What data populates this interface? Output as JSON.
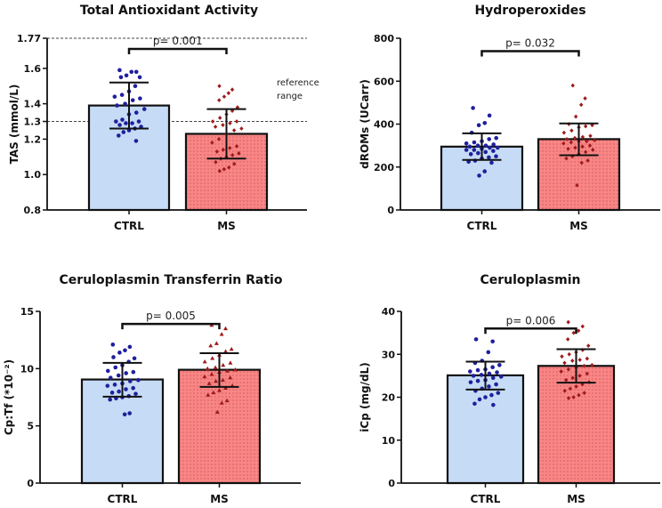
{
  "chart_data": [
    {
      "type": "bar",
      "title": "Total Antioxidant Activity",
      "ylabel": "TAS (mmol/L)",
      "categories": [
        "CTRL",
        "MS"
      ],
      "ylim": [
        0.8,
        1.77
      ],
      "yticks": [
        0.8,
        1.0,
        1.2,
        1.3,
        1.4,
        1.6,
        1.77
      ],
      "reference_lines": [
        1.3,
        1.77
      ],
      "annotation": "reference\nrange",
      "annotation_lines": [
        "reference",
        "range"
      ],
      "pvalue": "p= 0.001",
      "bracket_y": 1.71,
      "series": [
        {
          "category": "CTRL",
          "mean": 1.39,
          "sd_low": 1.26,
          "sd_high": 1.52,
          "marker": "circle",
          "points": [
            1.59,
            1.58,
            1.58,
            1.56,
            1.55,
            1.55,
            1.5,
            1.47,
            1.45,
            1.44,
            1.43,
            1.42,
            1.4,
            1.39,
            1.37,
            1.35,
            1.34,
            1.31,
            1.3,
            1.3,
            1.29,
            1.29,
            1.28,
            1.27,
            1.26,
            1.25,
            1.24,
            1.22,
            1.19
          ]
        },
        {
          "category": "MS",
          "mean": 1.23,
          "sd_low": 1.09,
          "sd_high": 1.37,
          "marker": "diamond",
          "points": [
            1.5,
            1.48,
            1.46,
            1.44,
            1.42,
            1.38,
            1.36,
            1.34,
            1.32,
            1.3,
            1.3,
            1.29,
            1.28,
            1.27,
            1.26,
            1.25,
            1.23,
            1.2,
            1.18,
            1.16,
            1.15,
            1.14,
            1.13,
            1.12,
            1.11,
            1.1,
            1.09,
            1.07,
            1.06,
            1.04,
            1.03,
            1.02
          ]
        }
      ]
    },
    {
      "type": "bar",
      "title": "Hydroperoxides",
      "ylabel": "dROMs (UCarr)",
      "categories": [
        "CTRL",
        "MS"
      ],
      "ylim": [
        0,
        800
      ],
      "yticks": [
        0,
        200,
        400,
        600,
        800
      ],
      "pvalue": "p= 0.032",
      "bracket_y": 740,
      "series": [
        {
          "category": "CTRL",
          "mean": 295,
          "sd_low": 233,
          "sd_high": 357,
          "marker": "circle",
          "points": [
            475,
            440,
            405,
            395,
            360,
            335,
            330,
            320,
            315,
            310,
            305,
            300,
            300,
            295,
            290,
            290,
            285,
            280,
            280,
            275,
            270,
            265,
            260,
            250,
            245,
            240,
            230,
            225,
            220,
            180,
            160
          ]
        },
        {
          "category": "MS",
          "mean": 330,
          "sd_low": 255,
          "sd_high": 403,
          "marker": "diamond",
          "points": [
            580,
            520,
            490,
            435,
            400,
            395,
            390,
            385,
            370,
            360,
            345,
            340,
            335,
            330,
            325,
            320,
            320,
            315,
            310,
            300,
            295,
            290,
            285,
            280,
            270,
            260,
            250,
            240,
            230,
            220,
            115
          ]
        }
      ]
    },
    {
      "type": "bar",
      "title": "Ceruloplasmin Transferrin Ratio",
      "ylabel": "Cp:Tf (*10⁻²)",
      "categories": [
        "CTRL",
        "MS"
      ],
      "ylim": [
        0,
        15
      ],
      "yticks": [
        0,
        5,
        10,
        15
      ],
      "pvalue": "p= 0.005",
      "bracket_y": 13.9,
      "series": [
        {
          "category": "CTRL",
          "mean": 9.05,
          "sd_low": 7.55,
          "sd_high": 10.5,
          "marker": "circle",
          "points": [
            12.1,
            11.9,
            11.6,
            11.4,
            11.0,
            10.9,
            10.6,
            10.3,
            10.1,
            9.8,
            9.7,
            9.6,
            9.4,
            9.2,
            9.0,
            8.9,
            8.7,
            8.6,
            8.5,
            8.3,
            8.2,
            8.0,
            7.9,
            7.8,
            7.6,
            7.5,
            7.4,
            7.3,
            6.1,
            6.0
          ]
        },
        {
          "category": "MS",
          "mean": 9.9,
          "sd_low": 8.4,
          "sd_high": 11.35,
          "marker": "triangle",
          "points": [
            13.8,
            13.5,
            13.0,
            12.2,
            12.0,
            11.7,
            11.5,
            11.2,
            10.9,
            10.6,
            10.5,
            10.3,
            10.1,
            10.0,
            9.9,
            9.8,
            9.7,
            9.5,
            9.3,
            9.2,
            9.0,
            8.9,
            8.7,
            8.5,
            8.3,
            8.1,
            7.9,
            7.7,
            7.2,
            7.0,
            6.2
          ]
        }
      ]
    },
    {
      "type": "bar",
      "title": "Ceruloplasmin",
      "ylabel": "iCp (mg/dL)",
      "categories": [
        "CTRL",
        "MS"
      ],
      "ylim": [
        0,
        40
      ],
      "yticks": [
        0,
        10,
        20,
        30,
        40
      ],
      "pvalue": "p= 0.006",
      "bracket_y": 36,
      "series": [
        {
          "category": "CTRL",
          "mean": 25.1,
          "sd_low": 21.8,
          "sd_high": 28.3,
          "marker": "circle",
          "points": [
            33.5,
            33,
            30.5,
            28.5,
            28,
            27.5,
            27,
            26.5,
            26.3,
            26,
            25.8,
            25.5,
            25.2,
            25,
            24.8,
            24.5,
            24,
            23.8,
            23.5,
            23,
            22.5,
            22,
            21.5,
            21,
            20.5,
            20,
            19.5,
            18.5,
            18.2
          ]
        },
        {
          "category": "MS",
          "mean": 27.3,
          "sd_low": 23.4,
          "sd_high": 31.2,
          "marker": "diamond",
          "points": [
            37.5,
            36.5,
            35.5,
            35,
            33.5,
            32,
            31,
            30.5,
            30,
            29.5,
            29,
            28.7,
            28.5,
            28,
            27.5,
            27.3,
            27,
            26.5,
            26,
            25.5,
            25,
            24.5,
            24,
            23.5,
            23,
            22.5,
            22,
            21.5,
            21,
            20.5,
            20,
            19.8
          ]
        }
      ]
    }
  ],
  "colors": {
    "ctrl_fill": "#c6dbf5",
    "ctrl_points": "#1f1f9e",
    "ms_fill": "#f98585",
    "ms_points": "#9e1b1b",
    "axis": "#111111"
  }
}
